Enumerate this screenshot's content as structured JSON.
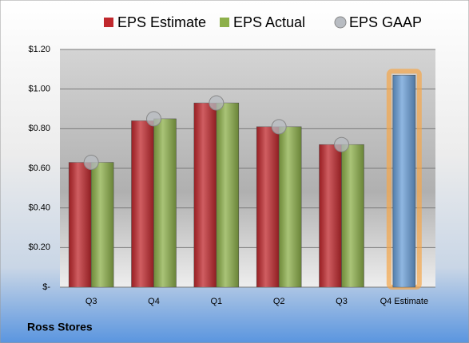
{
  "chart_data": {
    "type": "bar",
    "categories": [
      "Q3",
      "Q4",
      "Q1",
      "Q2",
      "Q3",
      "Q4 Estimate"
    ],
    "series": [
      {
        "name": "EPS Estimate",
        "color": "#c0282d",
        "values": [
          0.63,
          0.84,
          0.93,
          0.81,
          0.72,
          1.07
        ]
      },
      {
        "name": "EPS Actual",
        "color": "#8db04a",
        "values": [
          0.63,
          0.85,
          0.93,
          0.81,
          0.72,
          null
        ]
      },
      {
        "name": "EPS GAAP",
        "color": "#b8bcc2",
        "marker": "circle",
        "values": [
          0.63,
          0.85,
          0.93,
          0.81,
          0.72,
          null
        ]
      }
    ],
    "highlight": {
      "index": 5,
      "color": "#6a9fd8",
      "glow": "#f5a64a"
    },
    "ylim": [
      0,
      1.2
    ],
    "yticks": [
      {
        "value": 0,
        "label": "$-"
      },
      {
        "value": 0.2,
        "label": "$0.20"
      },
      {
        "value": 0.4,
        "label": "$0.40"
      },
      {
        "value": 0.6,
        "label": "$0.60"
      },
      {
        "value": 0.8,
        "label": "$0.80"
      },
      {
        "value": 1.0,
        "label": "$1.00"
      },
      {
        "value": 1.2,
        "label": "$1.20"
      }
    ],
    "grid": true,
    "legend": "top",
    "footer": "Ross Stores"
  }
}
